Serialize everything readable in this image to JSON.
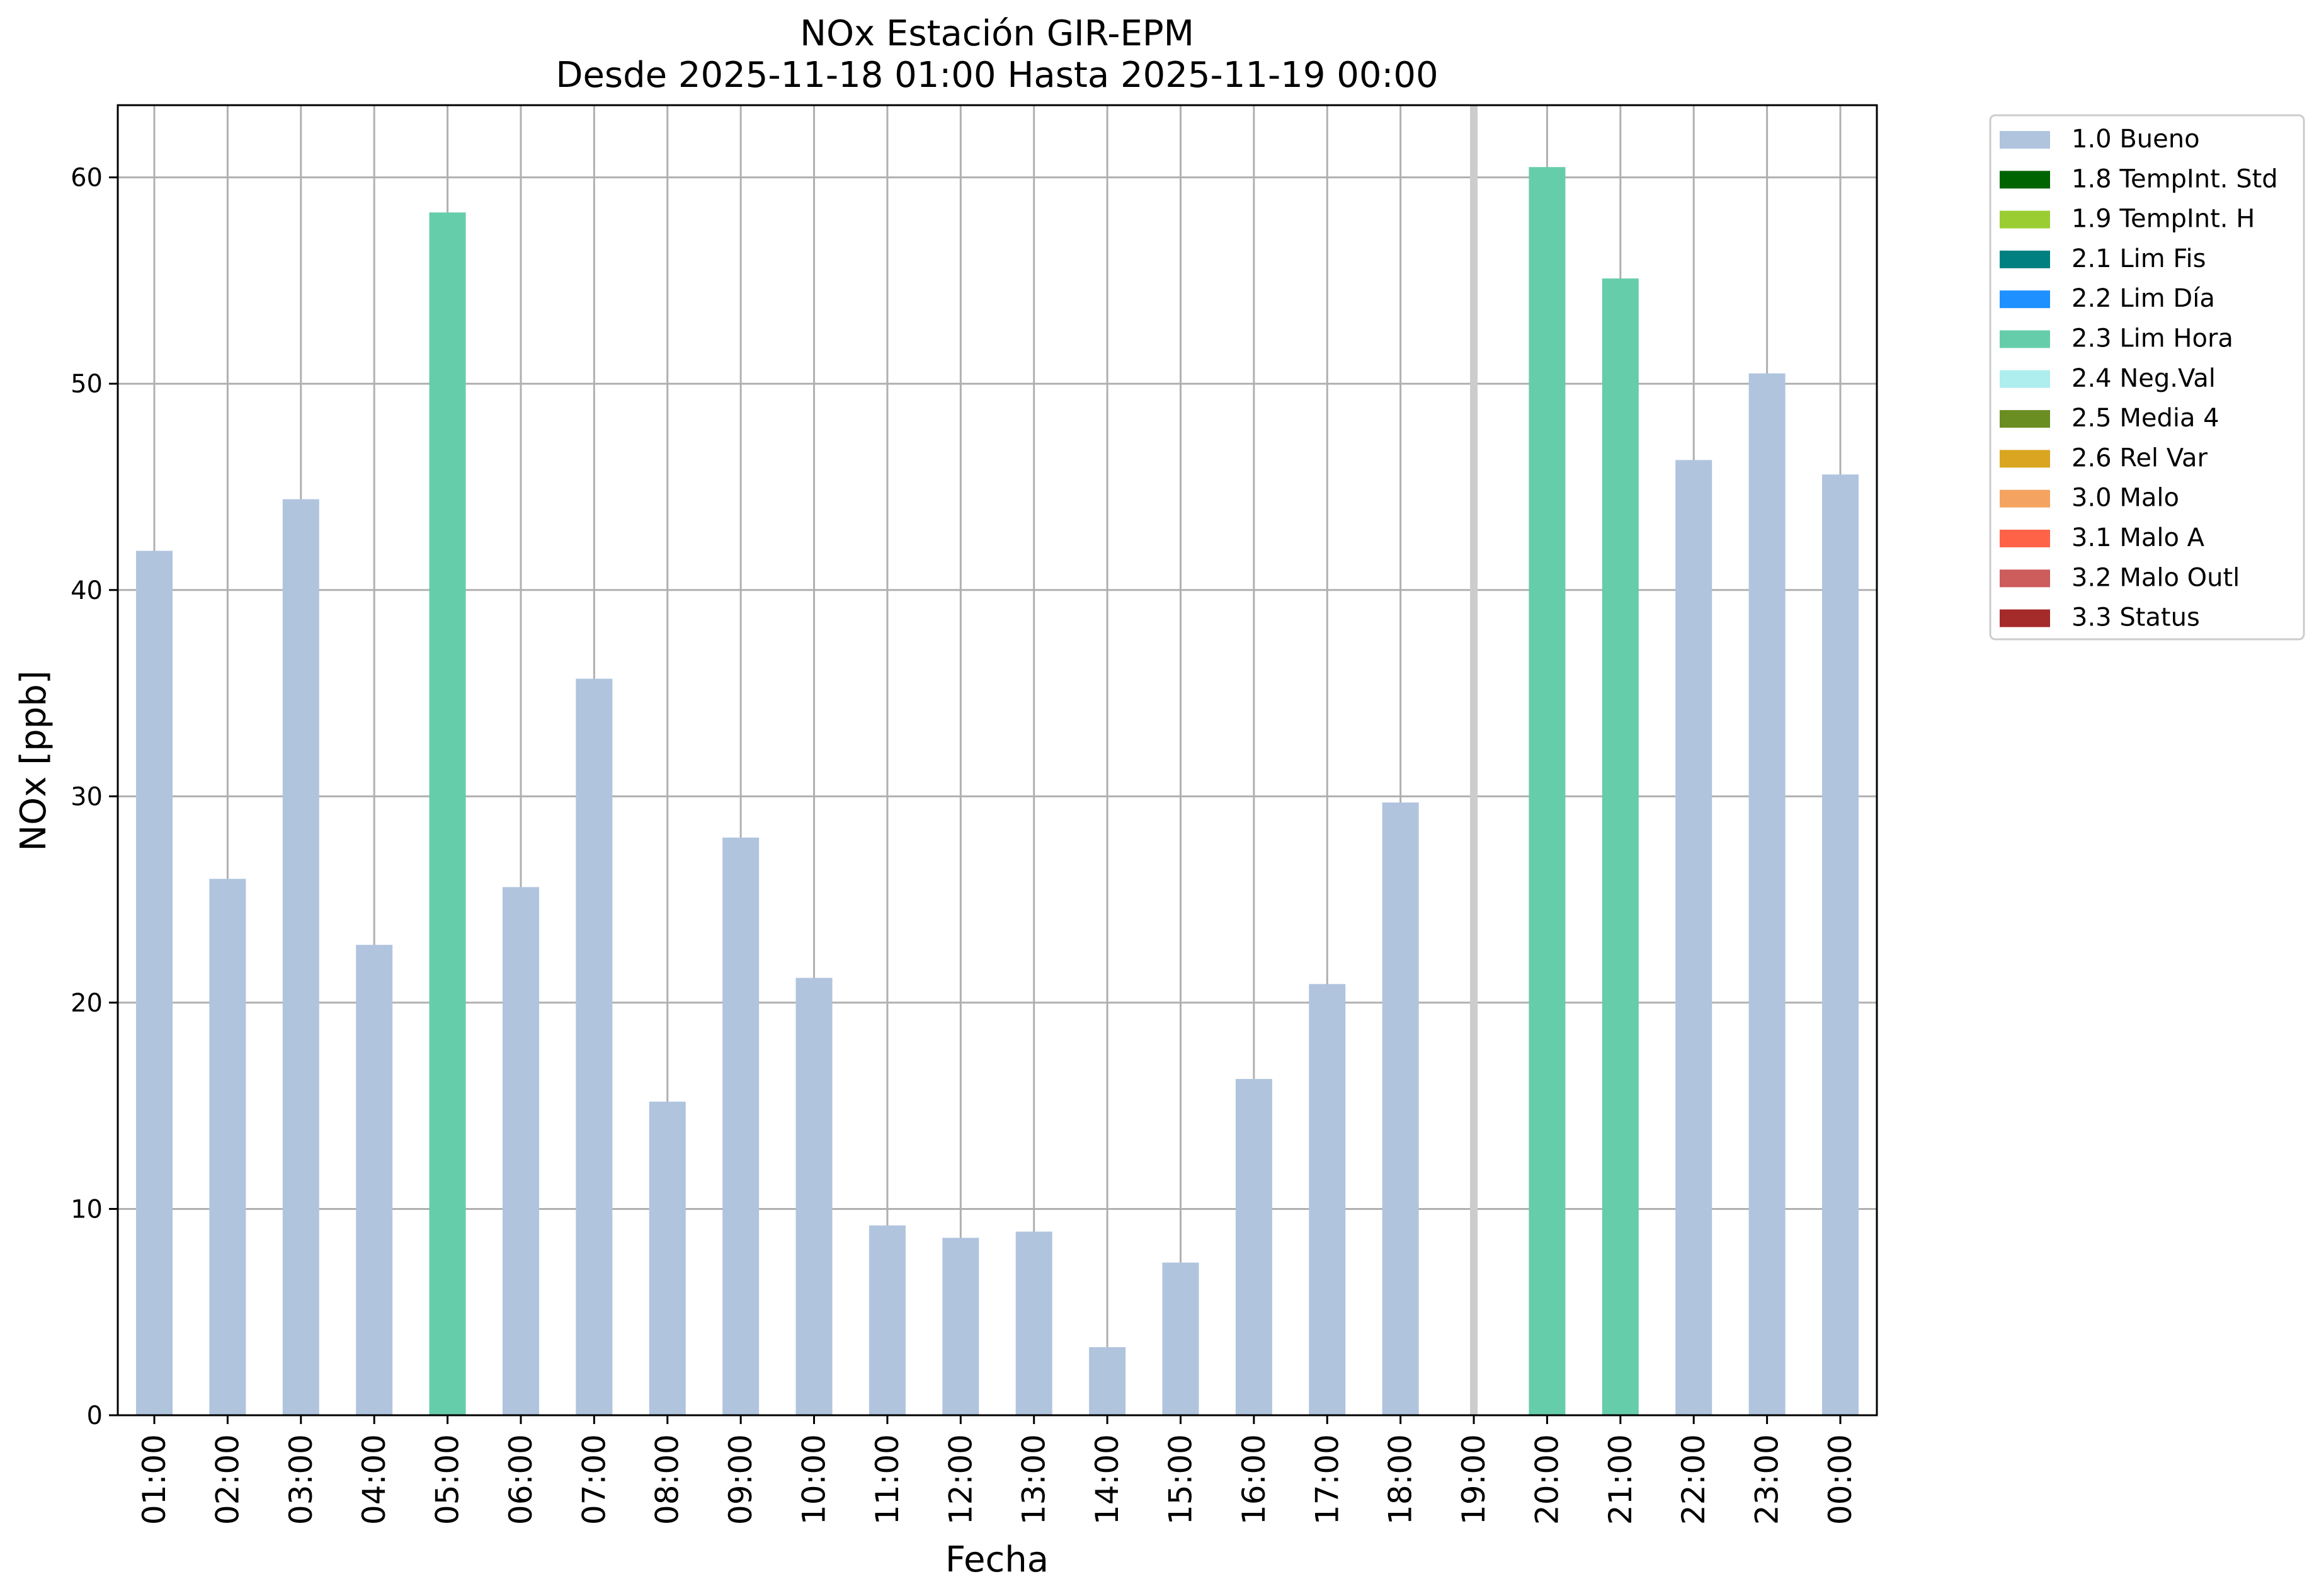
{
  "chart_data": {
    "type": "bar",
    "title": "NOx Estación GIR-EPM",
    "subtitle": "Desde 2025-11-18 01:00 Hasta 2025-11-19 00:00",
    "xlabel": "Fecha",
    "ylabel": "NOx [ppb]",
    "ylim": [
      0,
      63.5
    ],
    "yticks": [
      0,
      10,
      20,
      30,
      40,
      50,
      60
    ],
    "grid": true,
    "legend_position": "outside-top-right",
    "categories": [
      "01:00",
      "02:00",
      "03:00",
      "04:00",
      "05:00",
      "06:00",
      "07:00",
      "08:00",
      "09:00",
      "10:00",
      "11:00",
      "12:00",
      "13:00",
      "14:00",
      "15:00",
      "16:00",
      "17:00",
      "18:00",
      "19:00",
      "20:00",
      "21:00",
      "22:00",
      "23:00",
      "00:00"
    ],
    "values": [
      41.9,
      26.0,
      44.4,
      22.8,
      58.3,
      25.6,
      35.7,
      15.2,
      28.0,
      21.2,
      9.2,
      8.6,
      8.9,
      3.3,
      7.4,
      16.3,
      20.9,
      29.7,
      null,
      60.5,
      55.1,
      46.3,
      50.5,
      45.6
    ],
    "flags": [
      "1.0 Bueno",
      "1.0 Bueno",
      "1.0 Bueno",
      "1.0 Bueno",
      "2.3 Lim Hora",
      "1.0 Bueno",
      "1.0 Bueno",
      "1.0 Bueno",
      "1.0 Bueno",
      "1.0 Bueno",
      "1.0 Bueno",
      "1.0 Bueno",
      "1.0 Bueno",
      "1.0 Bueno",
      "1.0 Bueno",
      "1.0 Bueno",
      "1.0 Bueno",
      "1.0 Bueno",
      null,
      "2.3 Lim Hora",
      "2.3 Lim Hora",
      "1.0 Bueno",
      "1.0 Bueno",
      "1.0 Bueno"
    ],
    "missing_marker_categories": [
      "19:00"
    ],
    "legend": [
      {
        "label": "1.0 Bueno",
        "color": "#b0c4de"
      },
      {
        "label": "1.8 TempInt. Std",
        "color": "#006400"
      },
      {
        "label": "1.9 TempInt. H",
        "color": "#9acd32"
      },
      {
        "label": "2.1 Lim Fis",
        "color": "#008080"
      },
      {
        "label": "2.2 Lim Día",
        "color": "#1e90ff"
      },
      {
        "label": "2.3 Lim Hora",
        "color": "#66cdaa"
      },
      {
        "label": "2.4 Neg.Val",
        "color": "#afeeee"
      },
      {
        "label": "2.5 Media 4",
        "color": "#6b8e23"
      },
      {
        "label": "2.6 Rel Var",
        "color": "#daa520"
      },
      {
        "label": "3.0 Malo",
        "color": "#f4a460"
      },
      {
        "label": "3.1 Malo A",
        "color": "#ff6347"
      },
      {
        "label": "3.2 Malo Outl",
        "color": "#cd5c5c"
      },
      {
        "label": "3.3 Status",
        "color": "#a52a2a"
      }
    ]
  }
}
